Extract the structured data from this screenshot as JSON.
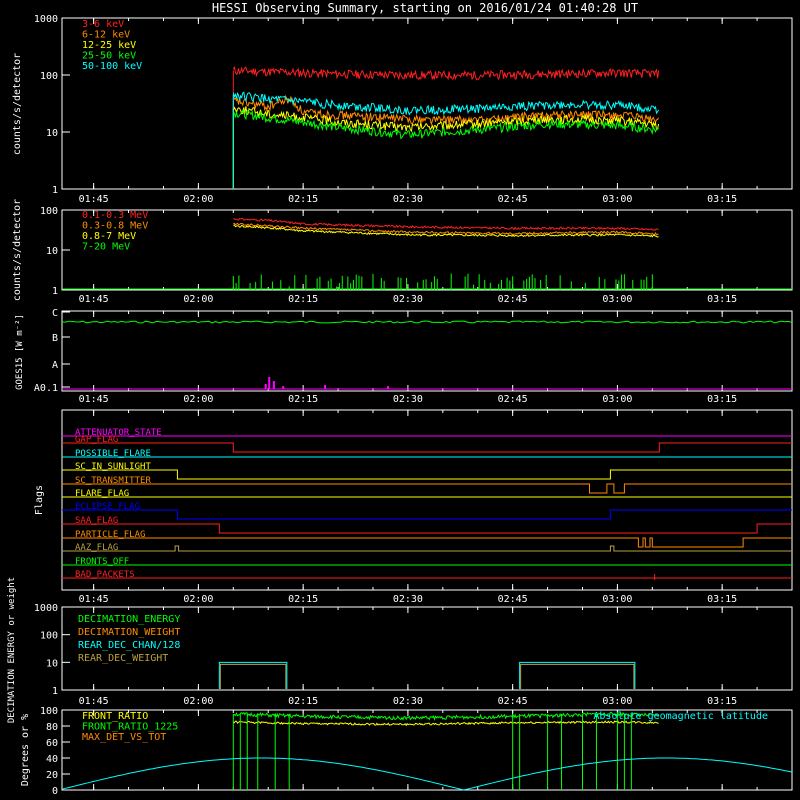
{
  "title": "HESSI Observing Summary, starting on 2016/01/24 01:40:28 UT",
  "time_ticks": [
    "01:45",
    "02:00",
    "02:15",
    "02:30",
    "02:45",
    "03:00",
    "03:15"
  ],
  "colors": {
    "red": "#ff2020",
    "orange": "#ff8c00",
    "yellow": "#ffff00",
    "green": "#00ff00",
    "cyan": "#00ffff",
    "magenta": "#ff00ff",
    "blue": "#0000ff",
    "olive": "#b8a040",
    "white": "#ffffff"
  },
  "chart_data": [
    {
      "type": "line",
      "ylabel": "counts/s/detector",
      "ylim": [
        1,
        1000
      ],
      "yscale": "log",
      "y_ticks": [
        "1",
        "10",
        "100",
        "1000"
      ],
      "xrange": [
        "01:40:28",
        "03:25"
      ],
      "legend": [
        "3-6 keV",
        "6-12 keV",
        "12-25 keV",
        "25-50 keV",
        "50-100 keV"
      ],
      "series": [
        {
          "name": "3-6 keV",
          "color": "red",
          "x": [
            "02:05",
            "02:10",
            "02:20",
            "02:30",
            "02:40",
            "02:50",
            "03:00",
            "03:06"
          ],
          "values": [
            120,
            115,
            105,
            100,
            100,
            105,
            110,
            105
          ]
        },
        {
          "name": "6-12 keV",
          "color": "orange",
          "x": [
            "02:05",
            "02:10",
            "02:13",
            "02:15",
            "02:20",
            "02:30",
            "02:40",
            "02:50",
            "03:00",
            "03:06"
          ],
          "values": [
            35,
            28,
            38,
            22,
            20,
            17,
            16,
            20,
            20,
            16
          ]
        },
        {
          "name": "12-25 keV",
          "color": "yellow",
          "x": [
            "02:05",
            "02:10",
            "02:20",
            "02:30",
            "02:40",
            "02:50",
            "03:00",
            "03:06"
          ],
          "values": [
            26,
            21,
            15,
            12,
            14,
            17,
            16,
            13
          ]
        },
        {
          "name": "25-50 keV",
          "color": "green",
          "x": [
            "02:05",
            "02:10",
            "02:20",
            "02:30",
            "02:40",
            "02:50",
            "03:00",
            "03:06"
          ],
          "values": [
            22,
            18,
            12,
            9,
            11,
            14,
            13,
            11
          ]
        },
        {
          "name": "50-100 keV",
          "color": "cyan",
          "x": [
            "02:05",
            "02:10",
            "02:20",
            "02:30",
            "02:40",
            "02:50",
            "03:00",
            "03:06"
          ],
          "values": [
            45,
            38,
            30,
            24,
            26,
            30,
            30,
            25
          ]
        }
      ]
    },
    {
      "type": "line",
      "ylabel": "counts/s/detector",
      "ylim": [
        1,
        100
      ],
      "yscale": "log",
      "y_ticks": [
        "1",
        "10",
        "100"
      ],
      "legend": [
        "0.1-0.3 MeV",
        "0.3-0.8 MeV",
        "0.8-7 MeV",
        "7-20 MeV"
      ],
      "series": [
        {
          "name": "0.1-0.3 MeV",
          "color": "red",
          "x": [
            "02:05",
            "02:10",
            "02:15",
            "02:30",
            "02:45",
            "03:00",
            "03:06"
          ],
          "values": [
            60,
            55,
            45,
            38,
            35,
            35,
            32
          ]
        },
        {
          "name": "0.3-0.8 MeV",
          "color": "orange",
          "x": [
            "02:05",
            "02:10",
            "02:15",
            "02:30",
            "02:45",
            "03:00",
            "03:06"
          ],
          "values": [
            45,
            40,
            35,
            28,
            26,
            28,
            25
          ]
        },
        {
          "name": "0.8-7 MeV",
          "color": "yellow",
          "x": [
            "02:05",
            "02:10",
            "02:15",
            "02:30",
            "02:45",
            "03:00",
            "03:06"
          ],
          "values": [
            40,
            36,
            30,
            24,
            23,
            24,
            22
          ]
        },
        {
          "name": "7-20 MeV",
          "color": "green",
          "x": [
            "02:05",
            "02:10",
            "02:15",
            "02:30",
            "02:45",
            "03:00",
            "03:06"
          ],
          "values": [
            2,
            1.5,
            1,
            1,
            1.5,
            1.5,
            1
          ]
        }
      ]
    },
    {
      "type": "line",
      "ylabel": "GOES15 [W m⁻²]",
      "y_ticks": [
        "A0.1",
        "A",
        "B",
        "C"
      ],
      "series": [
        {
          "name": "GOES",
          "color": "green",
          "x": [
            "01:40",
            "02:00",
            "02:15",
            "02:30",
            "02:45",
            "03:00",
            "03:15",
            "03:25"
          ],
          "values": [
            "C",
            "C",
            "C",
            "C",
            "C",
            "C",
            "C",
            "C"
          ]
        }
      ]
    },
    {
      "type": "line",
      "ylabel": "Flags",
      "legend": [
        "ATTENUATOR_STATE",
        "GAP_FLAG",
        "POSSIBLE_FLARE",
        "SC_IN_SUNLIGHT",
        "SC_TRANSMITTER",
        "FLARE_FLAG",
        "ECLIPSE_FLAG",
        "SAA_FLAG",
        "PARTICLE_FLAG",
        "AAZ_FLAG",
        "FRONTS_OFF",
        "BAD_PACKETS"
      ],
      "series": [
        {
          "name": "ATTENUATOR_STATE",
          "color": "magenta"
        },
        {
          "name": "GAP_FLAG",
          "color": "red"
        },
        {
          "name": "POSSIBLE_FLARE",
          "color": "cyan"
        },
        {
          "name": "SC_IN_SUNLIGHT",
          "color": "yellow"
        },
        {
          "name": "SC_TRANSMITTER",
          "color": "orange"
        },
        {
          "name": "FLARE_FLAG",
          "color": "yellow"
        },
        {
          "name": "ECLIPSE_FLAG",
          "color": "blue"
        },
        {
          "name": "SAA_FLAG",
          "color": "red"
        },
        {
          "name": "PARTICLE_FLAG",
          "color": "orange"
        },
        {
          "name": "AAZ_FLAG",
          "color": "olive"
        },
        {
          "name": "FRONTS_OFF",
          "color": "green"
        },
        {
          "name": "BAD_PACKETS",
          "color": "red"
        }
      ]
    },
    {
      "type": "line",
      "ylabel": "DECIMATION ENERGY or weight",
      "ylim": [
        1,
        1000
      ],
      "yscale": "log",
      "y_ticks": [
        "1",
        "10",
        "100",
        "1000"
      ],
      "legend": [
        "DECIMATION_ENERGY",
        "DECIMATION_WEIGHT",
        "REAR_DEC_CHAN/128",
        "REAR_DEC_WEIGHT"
      ],
      "series": [
        {
          "name": "DECIMATION_ENERGY",
          "color": "green"
        },
        {
          "name": "DECIMATION_WEIGHT",
          "color": "orange"
        },
        {
          "name": "REAR_DEC_CHAN/128",
          "color": "cyan"
        },
        {
          "name": "REAR_DEC_WEIGHT",
          "color": "olive"
        }
      ]
    },
    {
      "type": "line",
      "ylabel": "Degrees or %",
      "ylim": [
        0,
        100
      ],
      "y_ticks": [
        "0",
        "20",
        "40",
        "60",
        "80",
        "100"
      ],
      "legend": [
        "FRONT_RATIO",
        "FRONT_RATIO_1225",
        "MAX_DET_VS_TOT"
      ],
      "annotation": "Absolute geomagnetic latitude",
      "series": [
        {
          "name": "FRONT_RATIO",
          "color": "yellow",
          "x": [
            "02:05",
            "02:15",
            "02:30",
            "02:45",
            "03:00",
            "03:06"
          ],
          "values": [
            85,
            83,
            82,
            84,
            85,
            84
          ]
        },
        {
          "name": "FRONT_RATIO_1225",
          "color": "green",
          "x": [
            "02:05",
            "02:15",
            "02:30",
            "02:45",
            "03:00",
            "03:06"
          ],
          "values": [
            95,
            92,
            90,
            92,
            95,
            93
          ]
        },
        {
          "name": "MAX_DET_VS_TOT",
          "color": "orange"
        },
        {
          "name": "Absolute geomagnetic latitude",
          "color": "cyan",
          "x": [
            "01:40",
            "02:10",
            "02:38",
            "03:05",
            "03:25"
          ],
          "values": [
            0,
            40,
            0,
            40,
            0
          ]
        }
      ]
    }
  ]
}
